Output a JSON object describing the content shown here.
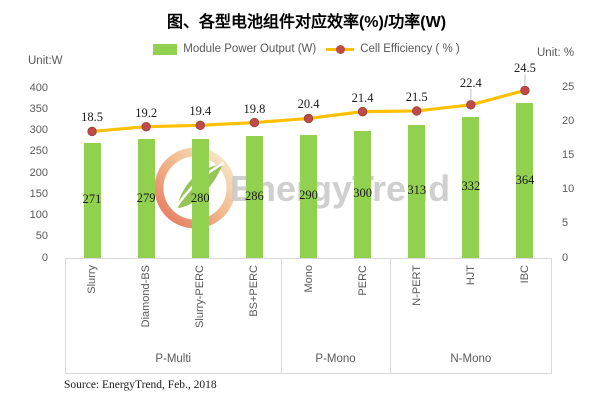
{
  "title": "图、各型电池组件对应效率(%)/功率(W)",
  "legend": {
    "bar_label": "Module Power Output (W)",
    "line_label": "Cell Efficiency ( % )"
  },
  "axes": {
    "left_unit": "Unit:W",
    "right_unit": "Unit: %"
  },
  "source": "Source: EnergyTrend, Feb., 2018",
  "watermark": "EnergyTrend",
  "chart_data": {
    "type": "bar",
    "subtype": "bar+line combo, line on secondary axis",
    "title": "图、各型电池组件对应效率(%)/功率(W)",
    "categories": [
      "Slurry",
      "Diamond-BS",
      "Slurry-PERC",
      "BS+PERC",
      "Mono",
      "PERC",
      "N-PERT",
      "HJT",
      "IBC"
    ],
    "groups": [
      {
        "label": "P-Multi",
        "span": 4
      },
      {
        "label": "P-Mono",
        "span": 2
      },
      {
        "label": "N-Mono",
        "span": 3
      }
    ],
    "series": [
      {
        "name": "Module Power Output (W)",
        "type": "bar",
        "axis": "left",
        "color": "#92D050",
        "values": [
          271,
          279,
          280,
          286,
          290,
          300,
          313,
          332,
          364
        ]
      },
      {
        "name": "Cell Efficiency ( % )",
        "type": "line",
        "axis": "right",
        "color": "#FFC000",
        "marker_color": "#BE4B48",
        "values": [
          18.5,
          19.2,
          19.4,
          19.8,
          20.4,
          21.4,
          21.5,
          22.4,
          24.5
        ],
        "leader_lines": [
          false,
          false,
          false,
          false,
          false,
          false,
          false,
          true,
          true
        ]
      }
    ],
    "left_axis": {
      "label": "Unit:W",
      "min": 0,
      "max": 400,
      "ticks": [
        400,
        350,
        300,
        250,
        200,
        150,
        100,
        50,
        0
      ]
    },
    "right_axis": {
      "label": "Unit: %",
      "min": 0,
      "max": 25,
      "ticks": [
        25,
        20,
        15,
        10,
        5,
        0
      ]
    },
    "grid": false,
    "legend_position": "top",
    "data_labels": "bar values centered inside bars, line values above markers"
  }
}
